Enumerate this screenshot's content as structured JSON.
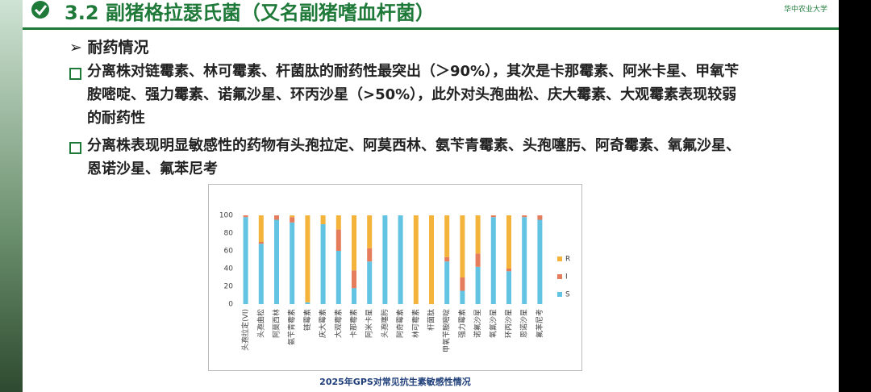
{
  "header": {
    "title": "3.2 副猪格拉瑟氏菌（又名副猪嗜血杆菌）",
    "logo": "华中农业大学"
  },
  "section": "➢ 耐药情况",
  "bullets": [
    "分离株对链霉素、林可霉素、杆菌肽的耐药性最突出（＞90%），其次是卡那霉素、阿米卡星、甲氧苄胺嘧啶、强力霉素、诺氟沙星、环丙沙星（>50%），此外对头孢曲松、庆大霉素、大观霉素表现较弱的耐药性",
    "分离株表现明显敏感性的药物有头孢拉定、阿莫西林、氨苄青霉素、头孢噻肟、阿奇霉素、氧氟沙星、恩诺沙星、氟苯尼考"
  ],
  "chart_data": {
    "type": "stacked_bar",
    "title": "2025年GPS对常见抗生素敏感性情况",
    "categories": [
      "头孢拉定(VI)",
      "头孢曲松",
      "阿莫西林",
      "氨苄青霉素",
      "链霉素",
      "庆大霉素",
      "大观霉素",
      "卡那霉素",
      "阿米卡星",
      "头孢噻肟",
      "阿奇霉素",
      "林可霉素",
      "杆菌肽",
      "甲氧苄胺嘧啶",
      "强力霉素",
      "诺氟沙星",
      "氧氟沙星",
      "环丙沙星",
      "恩诺沙星",
      "氟苯尼考"
    ],
    "series": [
      {
        "name": "S",
        "color": "#62c4e2",
        "values": [
          98,
          68,
          95,
          92,
          2,
          90,
          60,
          18,
          48,
          100,
          100,
          0,
          0,
          48,
          15,
          42,
          98,
          37,
          98,
          95
        ]
      },
      {
        "name": "I",
        "color": "#e57d5c",
        "values": [
          2,
          2,
          5,
          6,
          0,
          0,
          24,
          20,
          15,
          0,
          0,
          0,
          0,
          5,
          15,
          15,
          2,
          3,
          2,
          5
        ]
      },
      {
        "name": "R",
        "color": "#f4b33a",
        "values": [
          0,
          30,
          0,
          2,
          98,
          10,
          16,
          62,
          37,
          0,
          0,
          100,
          100,
          47,
          70,
          43,
          0,
          60,
          0,
          0
        ]
      }
    ],
    "ylim": [
      0,
      100
    ],
    "yticks": [
      0,
      20,
      40,
      60,
      80,
      100
    ],
    "grid": false,
    "legend": "right"
  }
}
